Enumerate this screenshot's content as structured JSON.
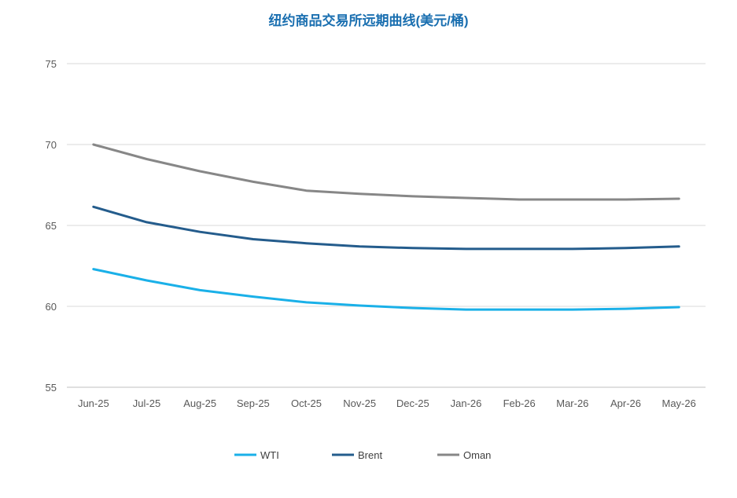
{
  "chart_data": {
    "type": "line",
    "title": "纽约商品交易所远期曲线(美元/桶)",
    "xlabel": "",
    "ylabel": "",
    "categories": [
      "Jun-25",
      "Jul-25",
      "Aug-25",
      "Sep-25",
      "Oct-25",
      "Nov-25",
      "Dec-25",
      "Jan-26",
      "Feb-26",
      "Mar-26",
      "Apr-26",
      "May-26"
    ],
    "ylim": [
      55,
      75
    ],
    "yticks": [
      55,
      60,
      65,
      70,
      75
    ],
    "grid": true,
    "legend_position": "bottom",
    "series": [
      {
        "name": "WTI",
        "color": "#1ab0e8",
        "values": [
          62.3,
          61.6,
          61.0,
          60.6,
          60.25,
          60.05,
          59.9,
          59.8,
          59.8,
          59.8,
          59.85,
          59.95
        ]
      },
      {
        "name": "Brent",
        "color": "#245c8c",
        "values": [
          66.15,
          65.2,
          64.6,
          64.15,
          63.9,
          63.7,
          63.6,
          63.55,
          63.55,
          63.55,
          63.6,
          63.7
        ]
      },
      {
        "name": "Oman",
        "color": "#878787",
        "values": [
          70.0,
          69.1,
          68.35,
          67.7,
          67.15,
          66.95,
          66.8,
          66.7,
          66.6,
          66.6,
          66.6,
          66.65
        ]
      }
    ]
  }
}
